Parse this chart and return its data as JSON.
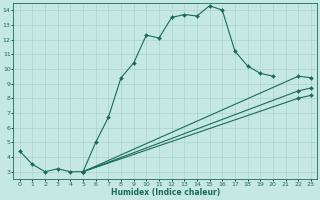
{
  "xlabel": "Humidex (Indice chaleur)",
  "ylabel": "",
  "xlim": [
    -0.5,
    23.5
  ],
  "ylim": [
    2.5,
    14.5
  ],
  "bg_color": "#c5e8e2",
  "grid_color": "#aad4cc",
  "line_color": "#1a6b5a",
  "line1": {
    "x": [
      0,
      1,
      2,
      3,
      4,
      5,
      6,
      7,
      8,
      9,
      10,
      11,
      12,
      13,
      14,
      15,
      16,
      17,
      18,
      19,
      20
    ],
    "y": [
      4.4,
      3.5,
      3.0,
      3.2,
      3.0,
      3.0,
      5.0,
      6.7,
      9.4,
      10.4,
      12.3,
      12.1,
      13.5,
      13.7,
      13.6,
      14.3,
      14.0,
      11.2,
      10.2,
      9.7,
      9.5
    ]
  },
  "line2": {
    "x": [
      5,
      22,
      23
    ],
    "y": [
      3.0,
      9.5,
      9.4
    ]
  },
  "line3": {
    "x": [
      5,
      22,
      23
    ],
    "y": [
      3.0,
      8.5,
      8.7
    ]
  },
  "line4": {
    "x": [
      5,
      22,
      23
    ],
    "y": [
      3.0,
      8.0,
      8.2
    ]
  },
  "yticks": [
    3,
    4,
    5,
    6,
    7,
    8,
    9,
    10,
    11,
    12,
    13,
    14
  ],
  "xticks": [
    0,
    1,
    2,
    3,
    4,
    5,
    6,
    7,
    8,
    9,
    10,
    11,
    12,
    13,
    14,
    15,
    16,
    17,
    18,
    19,
    20,
    21,
    22,
    23
  ]
}
